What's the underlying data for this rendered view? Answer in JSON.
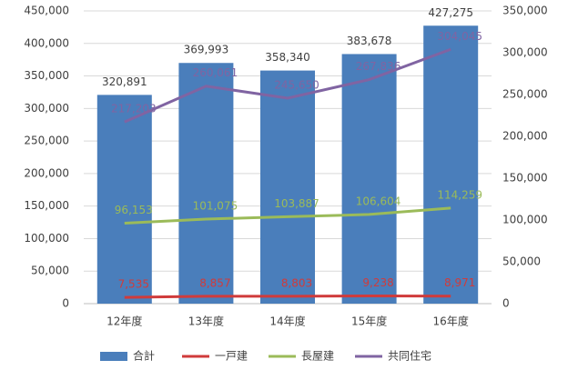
{
  "chart_data": {
    "type": "bar",
    "categories": [
      "12年度",
      "13年度",
      "14年度",
      "15年度",
      "16年度"
    ],
    "series": [
      {
        "name": "合計",
        "type": "bar",
        "color": "#4a7ebb",
        "values": [
          320891,
          369993,
          358340,
          383678,
          427275
        ],
        "value_labels": [
          "320,891",
          "369,993",
          "358,340",
          "383,678",
          "427,275"
        ]
      },
      {
        "name": "一戸建",
        "type": "line",
        "axis": "y2",
        "color": "#d03b3b",
        "values": [
          7535,
          8857,
          8803,
          9238,
          8971
        ],
        "value_labels": [
          "7,535",
          "8,857",
          "8,803",
          "9,238",
          "8,971"
        ]
      },
      {
        "name": "長屋建",
        "type": "line",
        "axis": "y2",
        "color": "#9bbb59",
        "values": [
          96153,
          101075,
          103887,
          106604,
          114259
        ],
        "value_labels": [
          "96,153",
          "101,075",
          "103,887",
          "106,604",
          "114,259"
        ]
      },
      {
        "name": "共同住宅",
        "type": "line",
        "axis": "y2",
        "color": "#8064a2",
        "values": [
          217203,
          260061,
          245650,
          267836,
          304045
        ],
        "value_labels": [
          "217,203",
          "260,061",
          "245,650",
          "267,836",
          "304,045"
        ]
      }
    ],
    "ylim": [
      0,
      450000
    ],
    "yticks": [
      0,
      {
        "value": 50000,
        "label": "50,000"
      },
      {
        "value": 100000,
        "label": "100,000"
      },
      {
        "value": 150000,
        "label": "150,000"
      },
      {
        "value": 200000,
        "label": "200,000"
      },
      {
        "value": 250000,
        "label": "250,000"
      },
      {
        "value": 300000,
        "label": "300,000"
      },
      {
        "value": 350000,
        "label": "350,000"
      },
      {
        "value": 400000,
        "label": "400,000"
      },
      {
        "value": 450000,
        "label": "450,000"
      }
    ],
    "y2lim": [
      0,
      350000
    ],
    "y2ticks": [
      0,
      {
        "value": 50000,
        "label": "50,000"
      },
      {
        "value": 100000,
        "label": "100,000"
      },
      {
        "value": 150000,
        "label": "150,000"
      },
      {
        "value": 200000,
        "label": "200,000"
      },
      {
        "value": 250000,
        "label": "250,000"
      },
      {
        "value": 300000,
        "label": "300,000"
      },
      {
        "value": 350000,
        "label": "350,000"
      }
    ],
    "grid": true,
    "legend": "bottom"
  }
}
